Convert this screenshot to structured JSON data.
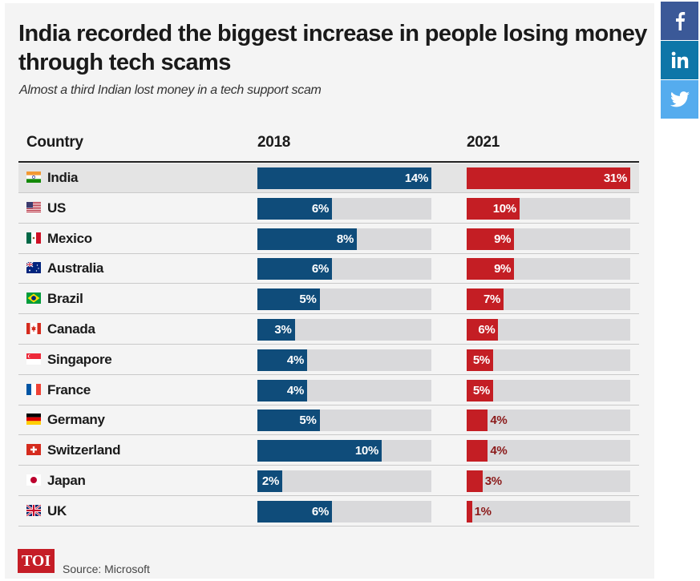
{
  "title": "India recorded the biggest increase in people losing money through tech scams",
  "subtitle": "Almost a third Indian lost money in a tech support scam",
  "source": "Source: Microsoft",
  "logo": "TOI",
  "social": [
    {
      "name": "facebook-icon",
      "glyph": "f",
      "color": "#3b5998"
    },
    {
      "name": "linkedin-icon",
      "glyph": "in",
      "color": "#0e76a8"
    },
    {
      "name": "twitter-icon",
      "glyph": "twitter",
      "color": "#55acee"
    }
  ],
  "colors": {
    "y2018": "#0f4c7a",
    "y2021": "#c41e24",
    "track": "#d9d9db"
  },
  "chart_data": {
    "type": "bar",
    "title": "India recorded the biggest increase in people losing money through tech scams",
    "subtitle": "Almost a third Indian lost money in a tech support scam",
    "header_country": "Country",
    "categories": [
      "India",
      "US",
      "Mexico",
      "Australia",
      "Brazil",
      "Canada",
      "Singapore",
      "France",
      "Germany",
      "Switzerland",
      "Japan",
      "UK"
    ],
    "series": [
      {
        "name": "2018",
        "values": [
          14,
          6,
          8,
          6,
          5,
          3,
          4,
          4,
          5,
          10,
          2,
          6
        ]
      },
      {
        "name": "2021",
        "values": [
          31,
          10,
          9,
          9,
          7,
          6,
          5,
          5,
          4,
          4,
          3,
          1
        ]
      }
    ],
    "labels_2018": [
      "14%",
      "6%",
      "8%",
      "6%",
      "5%",
      "3%",
      "4%",
      "4%",
      "5%",
      "10%",
      "2%",
      "6%"
    ],
    "labels_2021": [
      "31%",
      "10%",
      "9%",
      "9%",
      "7%",
      "6%",
      "5%",
      "5%",
      "4%",
      "4%",
      "3%",
      "1%"
    ],
    "scale_max": {
      "2018": 14,
      "2021": 31
    }
  }
}
